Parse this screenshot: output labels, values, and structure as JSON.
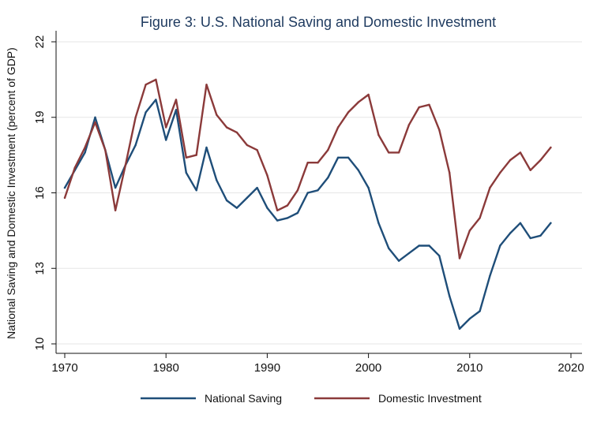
{
  "chart_data": {
    "type": "line",
    "title": "Figure 3: U.S. National Saving and Domestic Investment",
    "ylabel": "National Saving and Domestic Investment (percent of GDP)",
    "xlabel": "",
    "xlim": [
      1969,
      2021
    ],
    "ylim": [
      10,
      22
    ],
    "xticks": [
      1970,
      1980,
      1990,
      2000,
      2010,
      2020
    ],
    "yticks": [
      10,
      13,
      16,
      19,
      22
    ],
    "grid": true,
    "legend_position": "bottom",
    "x": [
      1970,
      1971,
      1972,
      1973,
      1974,
      1975,
      1976,
      1977,
      1978,
      1979,
      1980,
      1981,
      1982,
      1983,
      1984,
      1985,
      1986,
      1987,
      1988,
      1989,
      1990,
      1991,
      1992,
      1993,
      1994,
      1995,
      1996,
      1997,
      1998,
      1999,
      2000,
      2001,
      2002,
      2003,
      2004,
      2005,
      2006,
      2007,
      2008,
      2009,
      2010,
      2011,
      2012,
      2013,
      2014,
      2015,
      2016,
      2017,
      2018
    ],
    "series": [
      {
        "name": "National Saving",
        "color": "#1f4e79",
        "values": [
          16.2,
          16.9,
          17.6,
          19.0,
          17.7,
          16.2,
          17.1,
          17.9,
          19.2,
          19.7,
          18.1,
          19.3,
          16.8,
          16.1,
          17.8,
          16.5,
          15.7,
          15.4,
          15.8,
          16.2,
          15.4,
          14.9,
          15.0,
          15.2,
          16.0,
          16.1,
          16.6,
          17.4,
          17.4,
          16.9,
          16.2,
          14.8,
          13.8,
          13.3,
          13.6,
          13.9,
          13.9,
          13.5,
          11.9,
          10.6,
          11.0,
          11.3,
          12.7,
          13.9,
          14.4,
          14.8,
          14.2,
          14.3,
          14.8
        ]
      },
      {
        "name": "Domestic Investment",
        "color": "#8b3a3a",
        "values": [
          15.8,
          17.0,
          17.8,
          18.8,
          17.7,
          15.3,
          17.1,
          19.0,
          20.3,
          20.5,
          18.6,
          19.7,
          17.4,
          17.5,
          20.3,
          19.1,
          18.6,
          18.4,
          17.9,
          17.7,
          16.7,
          15.3,
          15.5,
          16.1,
          17.2,
          17.2,
          17.7,
          18.6,
          19.2,
          19.6,
          19.9,
          18.3,
          17.6,
          17.6,
          18.7,
          19.4,
          19.5,
          18.5,
          16.8,
          13.4,
          14.5,
          15.0,
          16.2,
          16.8,
          17.3,
          17.6,
          16.9,
          17.3,
          17.8
        ]
      }
    ]
  }
}
